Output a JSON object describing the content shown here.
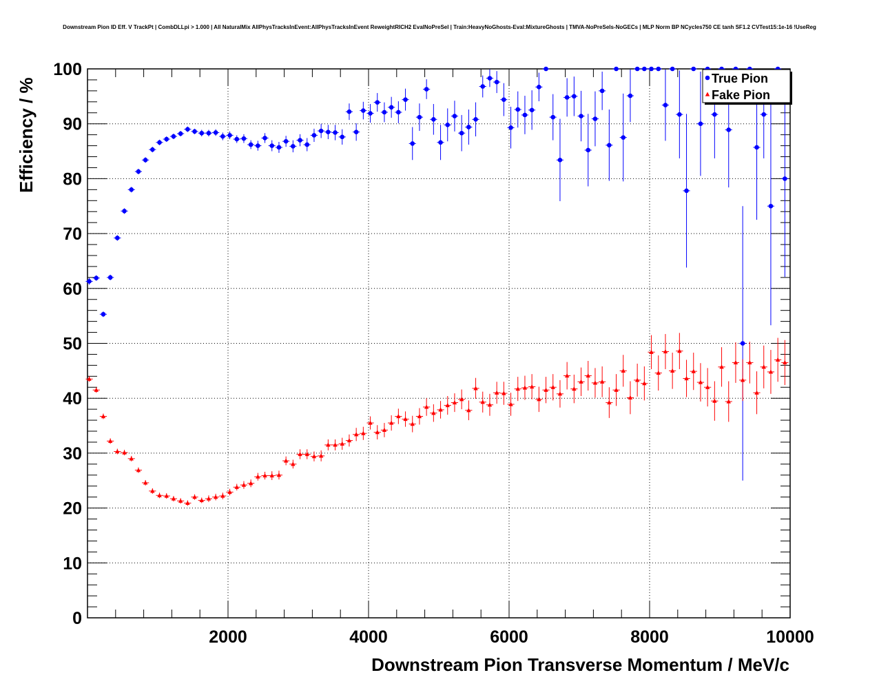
{
  "chart_data": {
    "type": "scatter",
    "title": "Downstream Pion ID Eff. V TrackPt | CombDLLpi > 1.000 | All NaturalMix AllPhysTracksInEvent:AllPhysTracksInEvent ReweightRICH2 EvalNoPreSel | Train:HeavyNoGhosts-Eval:MixtureGhosts | TMVA-NoPreSels-NoGECs | MLP Norm BP NCycles750 CE tanh SF1.2 CVTest15:1e-16 !UseReg",
    "xlabel": "Downstream Pion Transverse Momentum / MeV/c",
    "ylabel": "Efficiency / %",
    "xlim": [
      0,
      10000
    ],
    "ylim": [
      0,
      100
    ],
    "x_ticks": [
      2000,
      4000,
      6000,
      8000,
      10000
    ],
    "y_ticks": [
      0,
      10,
      20,
      30,
      40,
      50,
      60,
      70,
      80,
      90,
      100
    ],
    "grid": true,
    "legend_position": "top-right",
    "series": [
      {
        "name": "True Pion",
        "color": "#0000ff",
        "marker": "circle",
        "points": [
          [
            25,
            61.3,
            0.6
          ],
          [
            125,
            61.9,
            0.5
          ],
          [
            225,
            55.3,
            0.5
          ],
          [
            325,
            62.0,
            0.5
          ],
          [
            425,
            69.2,
            0.5
          ],
          [
            525,
            74.1,
            0.5
          ],
          [
            625,
            78.0,
            0.5
          ],
          [
            725,
            81.3,
            0.5
          ],
          [
            825,
            83.4,
            0.5
          ],
          [
            925,
            85.3,
            0.5
          ],
          [
            1025,
            86.6,
            0.5
          ],
          [
            1125,
            87.2,
            0.5
          ],
          [
            1225,
            87.7,
            0.5
          ],
          [
            1325,
            88.2,
            0.5
          ],
          [
            1425,
            89.0,
            0.5
          ],
          [
            1525,
            88.6,
            0.5
          ],
          [
            1625,
            88.3,
            0.6
          ],
          [
            1725,
            88.3,
            0.6
          ],
          [
            1825,
            88.4,
            0.6
          ],
          [
            1925,
            87.7,
            0.7
          ],
          [
            2025,
            87.9,
            0.7
          ],
          [
            2125,
            87.2,
            0.7
          ],
          [
            2225,
            87.3,
            0.8
          ],
          [
            2325,
            86.2,
            0.8
          ],
          [
            2425,
            86.0,
            0.9
          ],
          [
            2525,
            87.4,
            0.9
          ],
          [
            2625,
            86.0,
            1.0
          ],
          [
            2725,
            85.7,
            1.0
          ],
          [
            2825,
            86.8,
            1.0
          ],
          [
            2925,
            85.9,
            1.1
          ],
          [
            3025,
            87.0,
            1.1
          ],
          [
            3125,
            86.2,
            1.2
          ],
          [
            3225,
            87.9,
            1.2
          ],
          [
            3325,
            88.7,
            1.3
          ],
          [
            3425,
            88.5,
            1.3
          ],
          [
            3525,
            88.4,
            1.4
          ],
          [
            3625,
            87.6,
            1.4
          ],
          [
            3725,
            92.2,
            1.5
          ],
          [
            3825,
            88.5,
            1.6
          ],
          [
            3925,
            92.4,
            1.6
          ],
          [
            4025,
            91.9,
            1.7
          ],
          [
            4125,
            93.9,
            1.7
          ],
          [
            4225,
            92.1,
            1.8
          ],
          [
            4325,
            93.0,
            1.9
          ],
          [
            4425,
            92.1,
            2.0
          ],
          [
            4525,
            94.4,
            2.0
          ],
          [
            4625,
            86.4,
            3.0
          ],
          [
            4725,
            91.2,
            2.5
          ],
          [
            4825,
            96.3,
            1.8
          ],
          [
            4925,
            90.8,
            2.8
          ],
          [
            5025,
            86.6,
            3.2
          ],
          [
            5125,
            89.8,
            3.0
          ],
          [
            5225,
            91.4,
            2.8
          ],
          [
            5325,
            88.3,
            3.3
          ],
          [
            5425,
            89.4,
            3.2
          ],
          [
            5525,
            90.8,
            3.1
          ],
          [
            5625,
            96.8,
            2.0
          ],
          [
            5725,
            98.3,
            1.6
          ],
          [
            5825,
            97.6,
            2.0
          ],
          [
            5925,
            94.4,
            3.0
          ],
          [
            6025,
            89.3,
            3.8
          ],
          [
            6125,
            92.6,
            3.3
          ],
          [
            6225,
            91.6,
            3.5
          ],
          [
            6325,
            92.5,
            3.6
          ],
          [
            6425,
            96.7,
            2.6
          ],
          [
            6525,
            100,
            0
          ],
          [
            6625,
            91.2,
            4.2
          ],
          [
            6725,
            83.4,
            7.5
          ],
          [
            6825,
            94.8,
            3.5
          ],
          [
            6925,
            95.0,
            3.6
          ],
          [
            7025,
            91.4,
            4.6
          ],
          [
            7125,
            85.2,
            6.6
          ],
          [
            7225,
            90.9,
            5.0
          ],
          [
            7325,
            96.0,
            3.5
          ],
          [
            7425,
            86.1,
            6.5
          ],
          [
            7525,
            100,
            0
          ],
          [
            7625,
            87.5,
            8.0
          ],
          [
            7725,
            95.1,
            4.8
          ],
          [
            7825,
            100,
            0
          ],
          [
            7925,
            100,
            0
          ],
          [
            8025,
            100,
            0
          ],
          [
            8125,
            100,
            0
          ],
          [
            8225,
            93.4,
            6.5
          ],
          [
            8325,
            100,
            0
          ],
          [
            8425,
            91.7,
            8.0
          ],
          [
            8525,
            77.8,
            14.0
          ],
          [
            8625,
            100,
            0
          ],
          [
            8725,
            90.0,
            9.5
          ],
          [
            8825,
            100,
            0
          ],
          [
            8925,
            91.7,
            8.0
          ],
          [
            9025,
            100,
            0
          ],
          [
            9125,
            88.9,
            10.5
          ],
          [
            9225,
            100,
            0
          ],
          [
            9325,
            50.0,
            25.0
          ],
          [
            9425,
            100,
            0
          ],
          [
            9525,
            85.7,
            13.2
          ],
          [
            9625,
            91.7,
            8.0
          ],
          [
            9725,
            75.0,
            21.7
          ],
          [
            9825,
            100,
            0
          ],
          [
            9925,
            80.0,
            17.9
          ]
        ]
      },
      {
        "name": "Fake Pion",
        "color": "#ff0000",
        "marker": "triangle",
        "points": [
          [
            25,
            43.5,
            0.5
          ],
          [
            125,
            41.5,
            0.5
          ],
          [
            225,
            36.7,
            0.5
          ],
          [
            325,
            32.2,
            0.5
          ],
          [
            425,
            30.3,
            0.5
          ],
          [
            525,
            30.1,
            0.5
          ],
          [
            625,
            29.0,
            0.5
          ],
          [
            725,
            26.9,
            0.5
          ],
          [
            825,
            24.6,
            0.5
          ],
          [
            925,
            23.1,
            0.5
          ],
          [
            1025,
            22.3,
            0.5
          ],
          [
            1125,
            22.2,
            0.5
          ],
          [
            1225,
            21.7,
            0.5
          ],
          [
            1325,
            21.3,
            0.5
          ],
          [
            1425,
            20.9,
            0.5
          ],
          [
            1525,
            22.0,
            0.5
          ],
          [
            1625,
            21.4,
            0.5
          ],
          [
            1725,
            21.7,
            0.6
          ],
          [
            1825,
            22.0,
            0.6
          ],
          [
            1925,
            22.2,
            0.6
          ],
          [
            2025,
            22.9,
            0.6
          ],
          [
            2125,
            23.8,
            0.6
          ],
          [
            2225,
            24.2,
            0.7
          ],
          [
            2325,
            24.5,
            0.7
          ],
          [
            2425,
            25.7,
            0.7
          ],
          [
            2525,
            25.9,
            0.7
          ],
          [
            2625,
            25.9,
            0.8
          ],
          [
            2725,
            26.0,
            0.8
          ],
          [
            2825,
            28.6,
            0.8
          ],
          [
            2925,
            28.0,
            0.8
          ],
          [
            3025,
            29.8,
            0.9
          ],
          [
            3125,
            29.8,
            0.9
          ],
          [
            3225,
            29.4,
            0.9
          ],
          [
            3325,
            29.5,
            1.0
          ],
          [
            3425,
            31.5,
            1.0
          ],
          [
            3525,
            31.5,
            1.0
          ],
          [
            3625,
            31.7,
            1.1
          ],
          [
            3725,
            32.3,
            1.1
          ],
          [
            3825,
            33.4,
            1.2
          ],
          [
            3925,
            33.6,
            1.2
          ],
          [
            4025,
            35.5,
            1.2
          ],
          [
            4125,
            33.8,
            1.3
          ],
          [
            4225,
            34.2,
            1.3
          ],
          [
            4325,
            35.5,
            1.4
          ],
          [
            4425,
            36.7,
            1.4
          ],
          [
            4525,
            36.2,
            1.4
          ],
          [
            4625,
            35.3,
            1.5
          ],
          [
            4725,
            36.7,
            1.5
          ],
          [
            4825,
            38.4,
            1.6
          ],
          [
            4925,
            37.3,
            1.6
          ],
          [
            5025,
            37.9,
            1.6
          ],
          [
            5125,
            38.7,
            1.7
          ],
          [
            5225,
            39.2,
            1.7
          ],
          [
            5325,
            39.8,
            1.8
          ],
          [
            5425,
            37.8,
            1.8
          ],
          [
            5525,
            41.8,
            1.9
          ],
          [
            5625,
            39.3,
            1.9
          ],
          [
            5725,
            38.8,
            2.0
          ],
          [
            5825,
            41.0,
            2.0
          ],
          [
            5925,
            40.9,
            2.1
          ],
          [
            6025,
            38.9,
            2.1
          ],
          [
            6125,
            41.7,
            2.2
          ],
          [
            6225,
            41.9,
            2.2
          ],
          [
            6325,
            42.1,
            2.3
          ],
          [
            6425,
            39.8,
            2.3
          ],
          [
            6525,
            41.5,
            2.4
          ],
          [
            6625,
            42.0,
            2.4
          ],
          [
            6725,
            40.8,
            2.5
          ],
          [
            6825,
            44.1,
            2.5
          ],
          [
            6925,
            41.7,
            2.6
          ],
          [
            7025,
            43.0,
            2.6
          ],
          [
            7125,
            44.1,
            2.7
          ],
          [
            7225,
            42.8,
            2.7
          ],
          [
            7325,
            43.0,
            2.8
          ],
          [
            7425,
            39.2,
            2.8
          ],
          [
            7525,
            41.5,
            2.9
          ],
          [
            7625,
            45.0,
            2.9
          ],
          [
            7725,
            40.1,
            3.0
          ],
          [
            7825,
            43.3,
            3.0
          ],
          [
            7925,
            42.7,
            3.1
          ],
          [
            8025,
            48.4,
            3.1
          ],
          [
            8125,
            44.6,
            3.2
          ],
          [
            8225,
            48.5,
            3.2
          ],
          [
            8325,
            45.0,
            3.3
          ],
          [
            8425,
            48.6,
            3.3
          ],
          [
            8525,
            43.6,
            3.4
          ],
          [
            8625,
            44.9,
            3.4
          ],
          [
            8725,
            42.9,
            3.5
          ],
          [
            8825,
            42.0,
            3.5
          ],
          [
            8925,
            39.5,
            3.6
          ],
          [
            9025,
            45.7,
            3.6
          ],
          [
            9125,
            39.4,
            3.7
          ],
          [
            9225,
            46.5,
            3.7
          ],
          [
            9325,
            43.3,
            3.8
          ],
          [
            9425,
            46.5,
            3.8
          ],
          [
            9525,
            41.0,
            3.9
          ],
          [
            9625,
            45.7,
            3.9
          ],
          [
            9725,
            44.8,
            4.0
          ],
          [
            9825,
            47.0,
            4.0
          ],
          [
            9925,
            46.5,
            4.1
          ]
        ]
      }
    ]
  }
}
